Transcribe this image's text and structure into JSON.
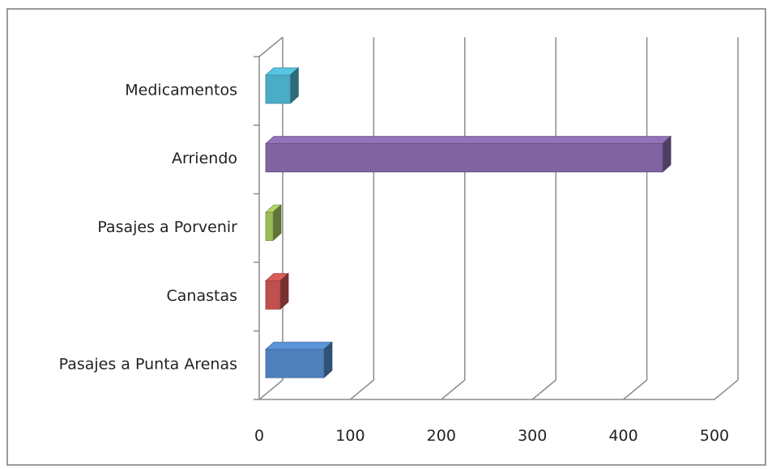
{
  "chart_data": {
    "type": "bar",
    "orientation": "horizontal",
    "style": "3d",
    "categories": [
      "Pasajes a Punta Arenas",
      "Canastas",
      "Pasajes a Porvenir",
      "Arriendo",
      "Medicamentos"
    ],
    "values": [
      64,
      16,
      8,
      436,
      27
    ],
    "colors": [
      "#4f81bd",
      "#c0504d",
      "#9bbb59",
      "#8064a2",
      "#4bacc6"
    ],
    "x_ticks": [
      "0",
      "100",
      "200",
      "300",
      "400",
      "500"
    ],
    "xlim": [
      0,
      500
    ],
    "grid": true,
    "legend": "none"
  }
}
